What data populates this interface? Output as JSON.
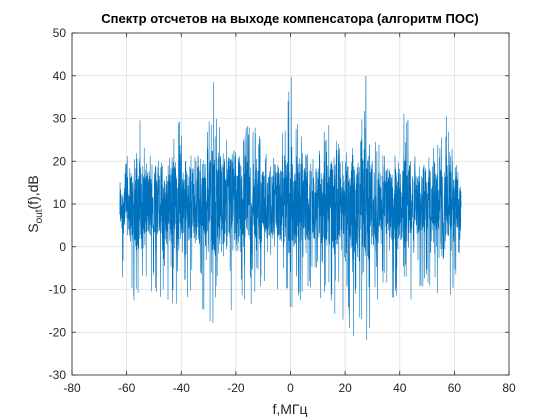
{
  "chart_data": {
    "type": "line",
    "title": "Спектр отсчетов на выходе компенсатора (алгоритм ПОС)",
    "xlabel": "f,МГц",
    "ylabel": {
      "prefix": "S",
      "subscript": "out",
      "suffix": "(f),dB"
    },
    "xlim": [
      -80,
      80
    ],
    "ylim": [
      -30,
      50
    ],
    "xticks": [
      "-80",
      "-60",
      "-40",
      "-20",
      "0",
      "20",
      "40",
      "60",
      "80"
    ],
    "yticks": [
      "-30",
      "-20",
      "-10",
      "0",
      "10",
      "20",
      "30",
      "40",
      "50"
    ],
    "grid": true,
    "line_color": "#0072BD",
    "series": [
      {
        "x_range": [
          -62.5,
          62.5
        ],
        "envelope_points": [
          {
            "x": -62.5,
            "y_max": 15,
            "y_min": -12
          },
          {
            "x": -60,
            "y_max": 22,
            "y_min": -10
          },
          {
            "x": -58,
            "y_max": 27,
            "y_min": -14
          },
          {
            "x": -56,
            "y_max": 36,
            "y_min": -15
          },
          {
            "x": -54,
            "y_max": 27,
            "y_min": -12
          },
          {
            "x": -50,
            "y_max": 20,
            "y_min": -10
          },
          {
            "x": -45,
            "y_max": 23,
            "y_min": -15
          },
          {
            "x": -42,
            "y_max": 34,
            "y_min": -14
          },
          {
            "x": -38,
            "y_max": 22,
            "y_min": -12
          },
          {
            "x": -34,
            "y_max": 22,
            "y_min": -13
          },
          {
            "x": -30,
            "y_max": 30,
            "y_min": -20
          },
          {
            "x": -28,
            "y_max": 43,
            "y_min": -22
          },
          {
            "x": -26,
            "y_max": 30,
            "y_min": -16
          },
          {
            "x": -22,
            "y_max": 23,
            "y_min": -27
          },
          {
            "x": -18,
            "y_max": 23,
            "y_min": -18
          },
          {
            "x": -14,
            "y_max": 35,
            "y_min": -14
          },
          {
            "x": -10,
            "y_max": 22,
            "y_min": -10
          },
          {
            "x": -5,
            "y_max": 22,
            "y_min": -12
          },
          {
            "x": -2,
            "y_max": 30,
            "y_min": -15
          },
          {
            "x": 0,
            "y_max": 42,
            "y_min": -16
          },
          {
            "x": 2,
            "y_max": 30,
            "y_min": -14
          },
          {
            "x": 6,
            "y_max": 22,
            "y_min": -12
          },
          {
            "x": 10,
            "y_max": 23,
            "y_min": -10
          },
          {
            "x": 14,
            "y_max": 35,
            "y_min": -18
          },
          {
            "x": 18,
            "y_max": 23,
            "y_min": -14
          },
          {
            "x": 22,
            "y_max": 22,
            "y_min": -27
          },
          {
            "x": 26,
            "y_max": 30,
            "y_min": -20
          },
          {
            "x": 28,
            "y_max": 43,
            "y_min": -22
          },
          {
            "x": 30,
            "y_max": 30,
            "y_min": -16
          },
          {
            "x": 34,
            "y_max": 22,
            "y_min": -12
          },
          {
            "x": 38,
            "y_max": 22,
            "y_min": -13
          },
          {
            "x": 42,
            "y_max": 34,
            "y_min": -14
          },
          {
            "x": 45,
            "y_max": 22,
            "y_min": -12
          },
          {
            "x": 50,
            "y_max": 20,
            "y_min": -10
          },
          {
            "x": 54,
            "y_max": 27,
            "y_min": -12
          },
          {
            "x": 56,
            "y_max": 37,
            "y_min": -14
          },
          {
            "x": 58,
            "y_max": 27,
            "y_min": -12
          },
          {
            "x": 60,
            "y_max": 22,
            "y_min": -10
          },
          {
            "x": 62.5,
            "y_max": 14,
            "y_min": -18
          }
        ],
        "baseline_band": [
          3,
          17
        ]
      }
    ]
  }
}
